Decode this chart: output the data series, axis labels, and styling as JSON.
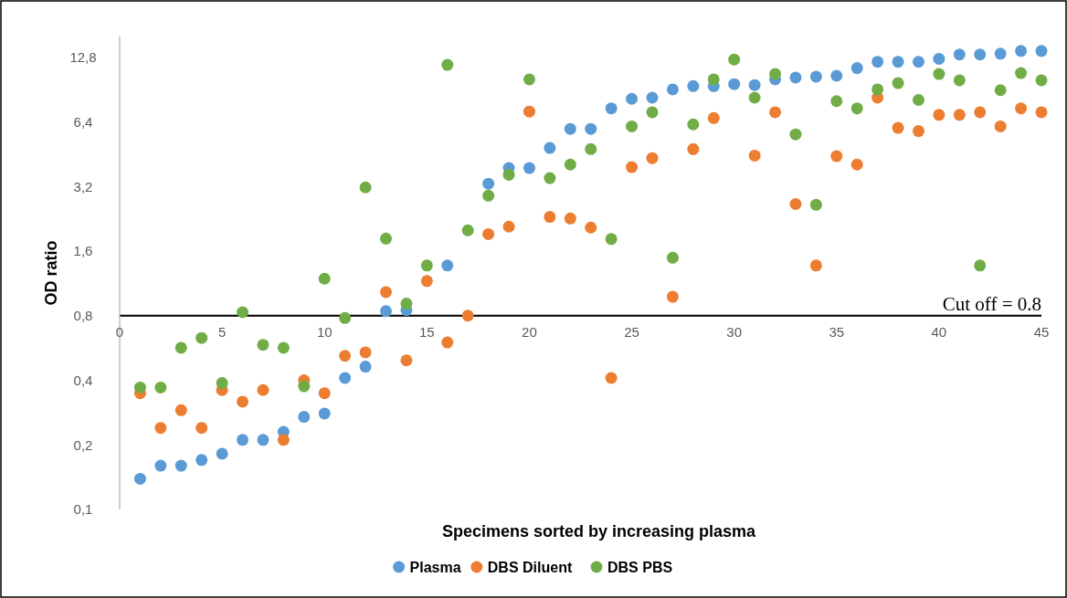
{
  "chart_data": {
    "type": "scatter",
    "xlabel": "Specimens sorted by increasing plasma",
    "ylabel": "OD ratio",
    "log": "y",
    "grid": false,
    "legend": "bottom",
    "marker": "circle",
    "x": [
      1,
      2,
      3,
      4,
      5,
      6,
      7,
      8,
      9,
      10,
      11,
      12,
      13,
      14,
      15,
      16,
      17,
      18,
      19,
      20,
      21,
      22,
      23,
      24,
      25,
      26,
      27,
      28,
      29,
      30,
      31,
      32,
      33,
      34,
      35,
      36,
      37,
      38,
      39,
      40,
      41,
      42,
      43,
      44,
      45
    ],
    "xlim": [
      0,
      45
    ],
    "xticks": [
      0,
      5,
      10,
      15,
      20,
      25,
      30,
      35,
      40,
      45
    ],
    "ylim": [
      0.1,
      16
    ],
    "yticks": [
      {
        "value": 0.1,
        "label": "0,1"
      },
      {
        "value": 0.2,
        "label": "0,2"
      },
      {
        "value": 0.4,
        "label": "0,4"
      },
      {
        "value": 0.8,
        "label": "0,8"
      },
      {
        "value": 1.6,
        "label": "1,6"
      },
      {
        "value": 3.2,
        "label": "3,2"
      },
      {
        "value": 6.4,
        "label": "6,4"
      },
      {
        "value": 12.8,
        "label": "12,8"
      }
    ],
    "ref_lines": [
      {
        "axis": "y",
        "value": 0.8,
        "label": "Cut off = 0.8",
        "color": "#000000"
      }
    ],
    "series": [
      {
        "name": "Plasma",
        "color": "#5b9bd5",
        "values": [
          0.139,
          0.16,
          0.16,
          0.17,
          0.182,
          0.211,
          0.211,
          0.23,
          0.27,
          0.28,
          0.41,
          0.463,
          0.84,
          0.85,
          null,
          1.37,
          null,
          3.3,
          3.9,
          3.9,
          4.84,
          5.94,
          5.94,
          7.4,
          8.2,
          8.3,
          9.07,
          9.4,
          9.4,
          9.6,
          9.5,
          10.1,
          10.3,
          10.4,
          10.5,
          11.4,
          12.2,
          12.2,
          12.2,
          12.6,
          13.2,
          13.2,
          13.3,
          13.7,
          13.7
        ]
      },
      {
        "name": "DBS Diluent",
        "color": "#ed7d31",
        "values": [
          0.348,
          0.24,
          0.29,
          0.24,
          0.36,
          0.318,
          0.36,
          0.211,
          0.4,
          0.348,
          0.52,
          0.54,
          1.03,
          0.495,
          1.16,
          0.6,
          0.8,
          1.92,
          2.08,
          7.15,
          2.31,
          2.27,
          2.06,
          0.41,
          3.94,
          4.34,
          0.98,
          4.78,
          6.67,
          null,
          4.46,
          7.1,
          2.65,
          1.37,
          4.43,
          4.05,
          8.3,
          6.0,
          5.8,
          6.9,
          6.9,
          7.1,
          6.1,
          7.4,
          7.1
        ]
      },
      {
        "name": "DBS PBS",
        "color": "#70ad47",
        "values": [
          0.37,
          0.37,
          0.567,
          0.63,
          0.388,
          0.83,
          0.585,
          0.567,
          0.375,
          1.19,
          0.78,
          3.17,
          1.83,
          0.91,
          1.37,
          11.8,
          2.0,
          2.9,
          3.63,
          10.1,
          3.5,
          4.05,
          4.78,
          1.82,
          6.1,
          7.1,
          1.49,
          6.23,
          10.1,
          12.5,
          8.3,
          10.7,
          5.6,
          2.63,
          8.0,
          7.4,
          9.07,
          9.7,
          8.1,
          10.7,
          10.0,
          1.37,
          9.0,
          10.8,
          10.0
        ]
      }
    ]
  }
}
